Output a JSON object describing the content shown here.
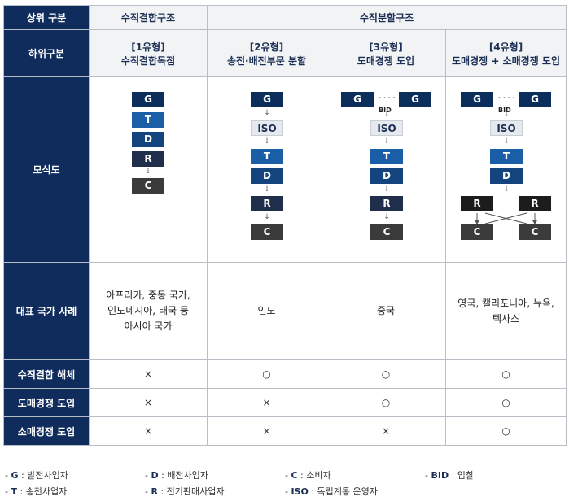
{
  "header": {
    "top_label": "상위 구분",
    "vertical": "수직결합구조",
    "separated": "수직분할구조",
    "sub_label": "하위구분"
  },
  "types": [
    {
      "num": "[1유형]",
      "name": "수직결합독점"
    },
    {
      "num": "[2유형]",
      "name": "송전·배전부문 분할"
    },
    {
      "num": "[3유형]",
      "name": "도매경쟁 도입"
    },
    {
      "num": "[4유형]",
      "name": "도매경쟁 + 소매경쟁 도입"
    }
  ],
  "rows": {
    "diagram": "모식도",
    "examples": "대표 국가 사례",
    "unbundling": "수직결합 해체",
    "wholesale": "도매경쟁 도입",
    "retail": "소매경쟁 도입"
  },
  "examples": [
    [
      "아프리카, 중동 국가,",
      "인도네시아, 태국 등",
      "아시아 국가"
    ],
    [
      "인도"
    ],
    [
      "중국"
    ],
    [
      "영국, 캘리포니아, 뉴욕,",
      "텍사스"
    ]
  ],
  "marks": {
    "unbundling": [
      "×",
      "○",
      "○",
      "○"
    ],
    "wholesale": [
      "×",
      "×",
      "○",
      "○"
    ],
    "retail": [
      "×",
      "×",
      "×",
      "○"
    ]
  },
  "boxes": {
    "G": "G",
    "T": "T",
    "D": "D",
    "R": "R",
    "C": "C",
    "ISO": "ISO",
    "BID": "BID",
    "dots": "· · · ·"
  },
  "legend": [
    {
      "key": "G",
      "sep": " : ",
      "text": "발전사업자"
    },
    {
      "key": "D",
      "sep": " : ",
      "text": "배전사업자"
    },
    {
      "key": "C",
      "sep": " : ",
      "text": "소비자"
    },
    {
      "key": "BID",
      "sep": " : ",
      "text": "입찰"
    },
    {
      "key": "T",
      "sep": " : ",
      "text": "송전사업자"
    },
    {
      "key": "R",
      "sep": " : ",
      "text": "전기판매사업자"
    },
    {
      "key": "ISO",
      "sep": " : ",
      "text": "독립계통 운영자"
    }
  ],
  "legend_dash": "- "
}
